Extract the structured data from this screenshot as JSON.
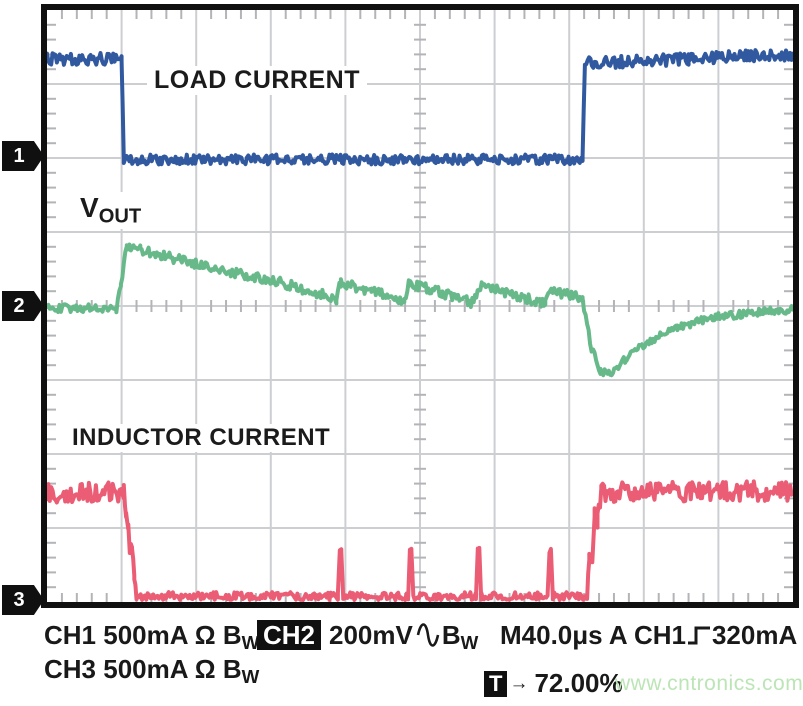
{
  "scope": {
    "labels": {
      "ch1_trace": "LOAD CURRENT",
      "vout_main": "V",
      "vout_sub": "OUT",
      "ch3_trace": "INDUCTOR CURRENT"
    },
    "channel_markers": {
      "ch1": "1",
      "ch2": "2",
      "ch3": "3"
    },
    "readout": {
      "ch1_prefix": "CH1 500mA",
      "omega": "Ω",
      "bw_main": "B",
      "bw_sub": "W",
      "ch2_badge": "CH2",
      "ch2_scale": "200mV",
      "timebase": "M40.0μs",
      "trigger_source": "A CH1",
      "trigger_level": "320mA",
      "ch3_prefix": "CH3 500mA",
      "t_badge": "T",
      "t_arrow": "→",
      "t_position": "72.00%",
      "watermark": "www.cntronics.com"
    },
    "colors": {
      "trace_blue": "#31599f",
      "trace_green": "#67b98a",
      "trace_red": "#eb5d74",
      "grid": "#cdced2",
      "tick": "#b3b4b8",
      "watermark": "#bce5b6"
    }
  },
  "chart_data": {
    "type": "line",
    "title": "Oscilloscope capture of load transient response",
    "x_axis": "time, 40.0 μs per division, 10 divisions",
    "y_axis": "vertical divisions (8 total); CH1 500mA/div, CH2 200mV/div, CH3 500mA/div",
    "grid": {
      "x_divs": 10,
      "y_divs": 8,
      "minor_per_div": 5
    },
    "trigger": {
      "source": "CH1",
      "edge": "rising",
      "level": "320mA",
      "position_pct": 72.0
    },
    "channels": [
      {
        "name": "CH1 LOAD CURRENT",
        "scale": "500mA/div",
        "coupling": "Ω BW",
        "color": "#31599f",
        "marker_div": 2.0
      },
      {
        "name": "CH2 VOUT",
        "scale": "200mV/div",
        "coupling": "AC BW",
        "color": "#67b98a",
        "marker_div": 4.0
      },
      {
        "name": "CH3 INDUCTOR CURRENT",
        "scale": "500mA/div",
        "coupling": "Ω BW",
        "color": "#eb5d74",
        "marker_div": 7.95
      }
    ],
    "point_format": "[x_divisions, y_divisions_from_top, noise_amplitude_px]",
    "series": [
      {
        "name": "load_current_ch1",
        "color": "#31599f",
        "stroke_px": 4,
        "points": [
          [
            0,
            0.66,
            6
          ],
          [
            1.0,
            0.66,
            6
          ],
          [
            1.03,
            2.02,
            5
          ],
          [
            7.18,
            2.02,
            5
          ],
          [
            7.21,
            0.72,
            6
          ],
          [
            8.6,
            0.66,
            6
          ],
          [
            10,
            0.6,
            6
          ]
        ]
      },
      {
        "name": "vout_ch2",
        "color": "#67b98a",
        "stroke_px": 4,
        "points": [
          [
            0,
            4.03,
            4
          ],
          [
            0.93,
            4.03,
            4
          ],
          [
            0.99,
            3.7,
            4
          ],
          [
            1.07,
            3.18,
            5
          ],
          [
            1.25,
            3.24,
            5
          ],
          [
            2.2,
            3.48,
            5
          ],
          [
            3.2,
            3.7,
            5
          ],
          [
            3.88,
            3.9,
            5
          ],
          [
            3.94,
            3.68,
            5
          ],
          [
            4.35,
            3.8,
            5
          ],
          [
            4.79,
            3.93,
            5
          ],
          [
            4.85,
            3.7,
            5
          ],
          [
            5.3,
            3.82,
            5
          ],
          [
            5.72,
            3.96,
            5
          ],
          [
            5.79,
            3.73,
            5
          ],
          [
            6.25,
            3.84,
            5
          ],
          [
            6.68,
            3.97,
            5
          ],
          [
            6.76,
            3.8,
            5
          ],
          [
            7.05,
            3.86,
            5
          ],
          [
            7.18,
            3.9,
            5
          ],
          [
            7.3,
            4.58,
            4
          ],
          [
            7.42,
            4.88,
            4
          ],
          [
            7.55,
            4.92,
            4
          ],
          [
            7.75,
            4.72,
            4
          ],
          [
            8.05,
            4.48,
            4
          ],
          [
            8.45,
            4.28,
            4
          ],
          [
            9.0,
            4.14,
            4
          ],
          [
            9.6,
            4.08,
            4
          ],
          [
            10,
            4.05,
            4
          ]
        ]
      },
      {
        "name": "inductor_current_ch3",
        "color": "#eb5d74",
        "stroke_px": 4,
        "points": [
          [
            0,
            6.52,
            10
          ],
          [
            1.03,
            6.52,
            10
          ],
          [
            1.06,
            6.8,
            6
          ],
          [
            1.09,
            7.0,
            5
          ],
          [
            1.11,
            7.28,
            5
          ],
          [
            1.14,
            7.22,
            5
          ],
          [
            1.17,
            7.65,
            4
          ],
          [
            1.2,
            7.92,
            4
          ],
          [
            3.9,
            7.92,
            4
          ],
          [
            3.925,
            7.32,
            2
          ],
          [
            3.945,
            7.3,
            2
          ],
          [
            3.97,
            7.92,
            4
          ],
          [
            4.84,
            7.92,
            4
          ],
          [
            4.865,
            7.32,
            2
          ],
          [
            4.885,
            7.3,
            2
          ],
          [
            4.91,
            7.92,
            4
          ],
          [
            5.75,
            7.92,
            4
          ],
          [
            5.775,
            7.3,
            2
          ],
          [
            5.795,
            7.28,
            2
          ],
          [
            5.82,
            7.92,
            4
          ],
          [
            6.71,
            7.92,
            4
          ],
          [
            6.735,
            7.33,
            2
          ],
          [
            6.755,
            7.3,
            2
          ],
          [
            6.78,
            7.92,
            4
          ],
          [
            7.24,
            7.92,
            4
          ],
          [
            7.27,
            7.4,
            5
          ],
          [
            7.31,
            7.45,
            6
          ],
          [
            7.34,
            6.8,
            8
          ],
          [
            7.38,
            6.9,
            9
          ],
          [
            7.43,
            6.52,
            10
          ],
          [
            10,
            6.5,
            10
          ]
        ]
      }
    ]
  }
}
